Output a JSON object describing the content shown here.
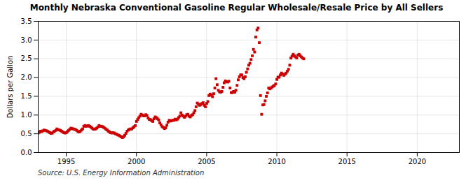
{
  "chart_data": {
    "type": "scatter",
    "title": "Monthly Nebraska Conventional Gasoline Regular Wholesale/Resale Price by All Sellers",
    "ylabel": "Dollars per Gallon",
    "source": "Source: U.S. Energy Information Administration",
    "color": "#cc0000",
    "marker": "square",
    "grid": true,
    "xlim": [
      1993.0,
      2023.0
    ],
    "ylim": [
      0.0,
      3.5
    ],
    "xticks": [
      1995,
      2000,
      2005,
      2010,
      2015,
      2020
    ],
    "yticks": [
      {
        "value": 0.0,
        "label": "0.0"
      },
      0.5,
      {
        "value": 1.0,
        "label": "1.0"
      },
      1.5,
      {
        "value": 2.0,
        "label": "2.0"
      },
      2.5,
      {
        "value": 3.0,
        "label": "3.0"
      },
      3.5
    ],
    "x": [
      1993,
      1993.0833333333333,
      1993.1666666666667,
      1993.25,
      1993.3333333333333,
      1993.4166666666667,
      1993.5,
      1993.5833333333333,
      1993.6666666666667,
      1993.75,
      1993.8333333333333,
      1993.9166666666667,
      1994,
      1994.0833333333333,
      1994.1666666666667,
      1994.25,
      1994.3333333333333,
      1994.4166666666667,
      1994.5,
      1994.5833333333333,
      1994.6666666666667,
      1994.75,
      1994.8333333333333,
      1994.9166666666667,
      1995,
      1995.0833333333333,
      1995.1666666666667,
      1995.25,
      1995.3333333333333,
      1995.4166666666667,
      1995.5,
      1995.5833333333333,
      1995.6666666666667,
      1995.75,
      1995.8333333333333,
      1995.9166666666667,
      1996,
      1996.0833333333333,
      1996.1666666666667,
      1996.25,
      1996.3333333333333,
      1996.4166666666667,
      1996.5,
      1996.5833333333333,
      1996.6666666666667,
      1996.75,
      1996.8333333333333,
      1996.9166666666667,
      1997,
      1997.0833333333333,
      1997.1666666666667,
      1997.25,
      1997.3333333333333,
      1997.4166666666667,
      1997.5,
      1997.5833333333333,
      1997.6666666666667,
      1997.75,
      1997.8333333333333,
      1997.9166666666667,
      1998,
      1998.0833333333333,
      1998.1666666666667,
      1998.25,
      1998.3333333333333,
      1998.4166666666667,
      1998.5,
      1998.5833333333333,
      1998.6666666666667,
      1998.75,
      1998.8333333333333,
      1998.9166666666667,
      1999,
      1999.0833333333333,
      1999.1666666666667,
      1999.25,
      1999.3333333333333,
      1999.4166666666667,
      1999.5,
      1999.5833333333333,
      1999.6666666666667,
      1999.75,
      1999.8333333333333,
      1999.9166666666667,
      2000,
      2000.0833333333333,
      2000.1666666666667,
      2000.25,
      2000.3333333333333,
      2000.4166666666667,
      2000.5,
      2000.5833333333333,
      2000.6666666666667,
      2000.75,
      2000.8333333333333,
      2000.9166666666667,
      2001,
      2001.0833333333333,
      2001.1666666666667,
      2001.25,
      2001.3333333333333,
      2001.4166666666667,
      2001.5,
      2001.5833333333333,
      2001.6666666666667,
      2001.75,
      2001.8333333333333,
      2001.9166666666667,
      2002,
      2002.0833333333333,
      2002.1666666666667,
      2002.25,
      2002.3333333333333,
      2002.4166666666667,
      2002.5,
      2002.5833333333333,
      2002.6666666666667,
      2002.75,
      2002.8333333333333,
      2002.9166666666667,
      2003,
      2003.0833333333333,
      2003.1666666666667,
      2003.25,
      2003.3333333333333,
      2003.4166666666667,
      2003.5,
      2003.5833333333333,
      2003.6666666666667,
      2003.75,
      2003.8333333333333,
      2003.9166666666667,
      2004,
      2004.0833333333333,
      2004.1666666666667,
      2004.25,
      2004.3333333333333,
      2004.4166666666667,
      2004.5,
      2004.5833333333333,
      2004.6666666666667,
      2004.75,
      2004.8333333333333,
      2004.9166666666667,
      2005,
      2005.0833333333333,
      2005.1666666666667,
      2005.25,
      2005.3333333333333,
      2005.4166666666667,
      2005.5,
      2005.5833333333333,
      2005.6666666666667,
      2005.75,
      2005.8333333333333,
      2005.9166666666667,
      2006,
      2006.0833333333333,
      2006.1666666666667,
      2006.25,
      2006.3333333333333,
      2006.4166666666667,
      2006.5,
      2006.5833333333333,
      2006.6666666666667,
      2006.75,
      2006.8333333333333,
      2006.9166666666667,
      2007,
      2007.0833333333333,
      2007.1666666666667,
      2007.25,
      2007.3333333333333,
      2007.4166666666667,
      2007.5,
      2007.5833333333333,
      2007.6666666666667,
      2007.75,
      2007.8333333333333,
      2007.9166666666667,
      2008,
      2008.0833333333333,
      2008.1666666666667,
      2008.25,
      2008.3333333333333,
      2008.4166666666667,
      2008.5,
      2008.5833333333333,
      2008.6666666666667,
      2008.75,
      2008.8333333333333,
      2008.9166666666667,
      2009,
      2009.0833333333333,
      2009.1666666666667,
      2009.25,
      2009.3333333333333,
      2009.4166666666667,
      2009.5,
      2009.5833333333333,
      2009.6666666666667,
      2009.75,
      2009.8333333333333,
      2009.9166666666667,
      2010,
      2010.0833333333333,
      2010.1666666666667,
      2010.25,
      2010.3333333333333,
      2010.4166666666667,
      2010.5,
      2010.5833333333333,
      2010.6666666666667,
      2010.75,
      2010.8333333333333,
      2010.9166666666667,
      2011,
      2011.0833333333333,
      2011.1666666666667,
      2011.25,
      2011.3333333333333,
      2011.4166666666667,
      2011.5,
      2011.5833333333333,
      2011.6666666666667,
      2011.75,
      2011.8333333333333,
      2011.9166666666667
    ],
    "values": [
      0.52,
      0.54,
      0.57,
      0.56,
      0.58,
      0.6,
      0.59,
      0.58,
      0.57,
      0.55,
      0.53,
      0.51,
      0.52,
      0.55,
      0.57,
      0.59,
      0.63,
      0.61,
      0.6,
      0.59,
      0.57,
      0.55,
      0.53,
      0.52,
      0.53,
      0.56,
      0.59,
      0.62,
      0.65,
      0.64,
      0.63,
      0.62,
      0.61,
      0.59,
      0.56,
      0.55,
      0.57,
      0.6,
      0.63,
      0.7,
      0.72,
      0.7,
      0.71,
      0.72,
      0.7,
      0.68,
      0.65,
      0.63,
      0.62,
      0.63,
      0.65,
      0.68,
      0.72,
      0.7,
      0.7,
      0.69,
      0.67,
      0.65,
      0.62,
      0.6,
      0.57,
      0.55,
      0.53,
      0.52,
      0.53,
      0.52,
      0.5,
      0.49,
      0.47,
      0.46,
      0.44,
      0.42,
      0.4,
      0.42,
      0.46,
      0.51,
      0.57,
      0.6,
      0.62,
      0.63,
      0.63,
      0.66,
      0.69,
      0.72,
      0.83,
      0.88,
      0.93,
      0.97,
      1.02,
      1.0,
      0.98,
      0.98,
      1.01,
      0.99,
      0.92,
      0.88,
      0.88,
      0.85,
      0.83,
      0.9,
      0.95,
      0.93,
      0.9,
      0.87,
      0.79,
      0.74,
      0.69,
      0.67,
      0.64,
      0.66,
      0.73,
      0.81,
      0.86,
      0.84,
      0.85,
      0.86,
      0.86,
      0.89,
      0.87,
      0.89,
      0.93,
      0.97,
      1.06,
      1.0,
      0.97,
      0.94,
      0.97,
      1.01,
      1.02,
      0.97,
      0.95,
      0.99,
      1.01,
      1.06,
      1.12,
      1.22,
      1.32,
      1.29,
      1.26,
      1.28,
      1.31,
      1.33,
      1.26,
      1.22,
      1.31,
      1.36,
      1.52,
      1.56,
      1.53,
      1.49,
      1.57,
      1.72,
      1.97,
      1.81,
      1.66,
      1.62,
      1.61,
      1.63,
      1.74,
      1.86,
      1.91,
      1.89,
      1.88,
      1.9,
      1.72,
      1.6,
      1.6,
      1.63,
      1.61,
      1.66,
      1.79,
      1.94,
      2.02,
      2.07,
      2.07,
      2.0,
      1.97,
      2.02,
      2.14,
      2.23,
      2.33,
      2.38,
      2.48,
      2.58,
      2.75,
      2.68,
      3.08,
      3.27,
      3.32,
      2.93,
      1.52,
      1.02,
      1.27,
      1.28,
      1.38,
      1.5,
      1.59,
      1.72,
      1.7,
      1.72,
      1.75,
      1.77,
      1.79,
      1.83,
      1.95,
      2.01,
      2.01,
      2.07,
      2.12,
      2.09,
      2.06,
      2.09,
      2.12,
      2.17,
      2.22,
      2.33,
      2.52,
      2.57,
      2.62,
      2.58,
      2.55,
      2.52,
      2.6,
      2.62,
      2.58,
      2.55,
      2.52,
      2.5
    ]
  }
}
